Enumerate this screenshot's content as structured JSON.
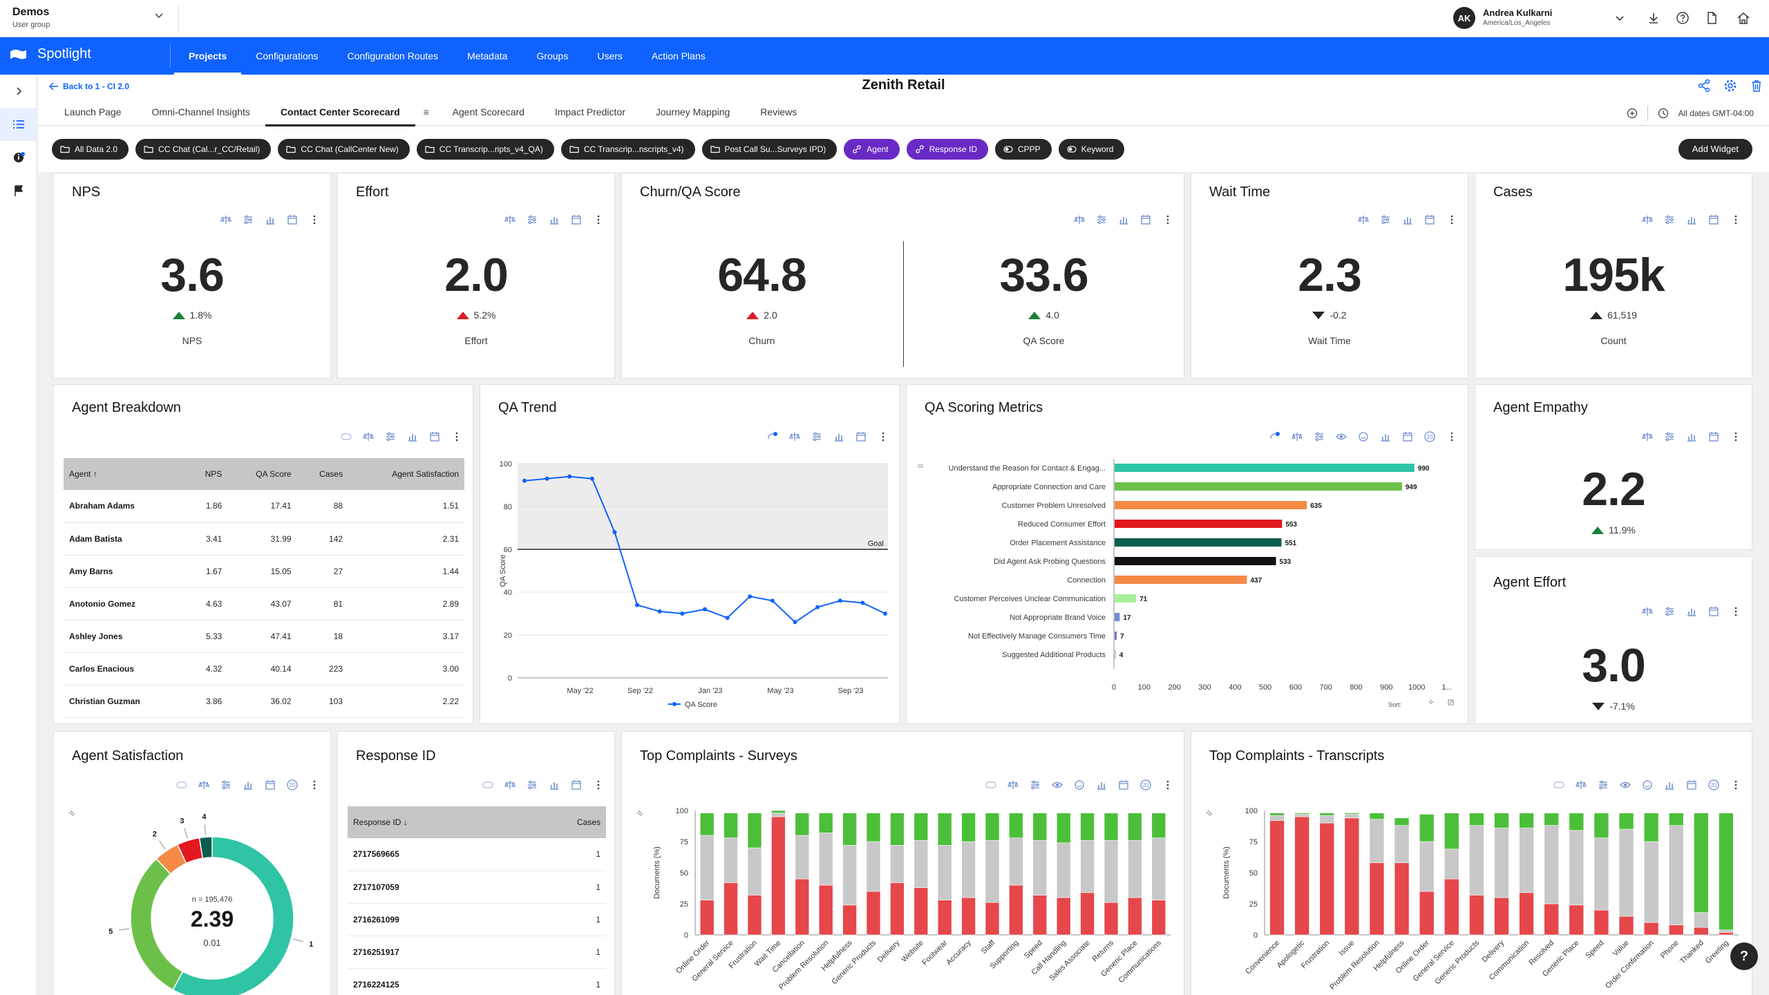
{
  "topbar": {
    "group": "Demos",
    "group_sub": "User group",
    "user_initials": "AK",
    "user_name": "Andrea Kulkarni",
    "user_tz": "America/Los_Angeles"
  },
  "nav": {
    "brand": "Spotlight",
    "items": [
      "Projects",
      "Configurations",
      "Configuration Routes",
      "Metadata",
      "Groups",
      "Users",
      "Action Plans"
    ]
  },
  "page": {
    "back": "Back to 1 - CI 2.0",
    "title": "Zenith Retail",
    "dates": "All dates GMT-04:00"
  },
  "tabs": [
    "Launch Page",
    "Omni-Channel Insights",
    "Contact Center Scorecard",
    "Agent Scorecard",
    "Impact Predictor",
    "Journey Mapping",
    "Reviews"
  ],
  "tab_menu": "≡",
  "chips": [
    "All Data 2.0",
    "CC Chat (Cal...r_CC/Retail)",
    "CC Chat (CallCenter New)",
    "CC Transcrip...ripts_v4_QA)",
    "CC Transcrip...nscripts_v4)",
    "Post Call Su...Surveys IPD)",
    "Agent",
    "Response ID",
    "CPPP",
    "Keyword"
  ],
  "add_widget": "Add Widget",
  "kpi": {
    "nps": {
      "title": "NPS",
      "value": "3.6",
      "delta": "1.8%",
      "label": "NPS"
    },
    "effort": {
      "title": "Effort",
      "value": "2.0",
      "delta": "5.2%",
      "label": "Effort"
    },
    "churnqa": {
      "title": "Churn/QA Score",
      "value1": "64.8",
      "delta1": "2.0",
      "label1": "Churn",
      "value2": "33.6",
      "delta2": "4.0",
      "label2": "QA Score"
    },
    "wait": {
      "title": "Wait Time",
      "value": "2.3",
      "delta": "-0.2",
      "label": "Wait Time"
    },
    "cases": {
      "title": "Cases",
      "value": "195k",
      "delta": "61,519",
      "label": "Count"
    },
    "empathy": {
      "title": "Agent Empathy",
      "value": "2.2",
      "delta": "11.9%"
    },
    "aeffort": {
      "title": "Agent Effort",
      "value": "3.0",
      "delta": "-7.1%"
    }
  },
  "agent_breakdown": {
    "title": "Agent Breakdown",
    "columns": [
      "Agent ↑",
      "NPS",
      "QA Score",
      "Cases",
      "Agent Satisfaction"
    ],
    "rows": [
      [
        "Abraham Adams",
        "1.86",
        "17.41",
        "88",
        "1.51"
      ],
      [
        "Adam Batista",
        "3.41",
        "31.99",
        "142",
        "2.31"
      ],
      [
        "Amy Barns",
        "1.67",
        "15.05",
        "27",
        "1.44"
      ],
      [
        "Anotonio Gomez",
        "4.63",
        "43.07",
        "81",
        "2.89"
      ],
      [
        "Ashley Jones",
        "5.33",
        "47.41",
        "18",
        "3.17"
      ],
      [
        "Carlos Enacious",
        "4.32",
        "40.14",
        "223",
        "3.00"
      ],
      [
        "Christian Guzman",
        "3.86",
        "36.02",
        "103",
        "2.22"
      ]
    ]
  },
  "response_id": {
    "title": "Response ID",
    "columns": [
      "Response ID ↓",
      "Cases"
    ],
    "rows": [
      [
        "2717569665",
        "1"
      ],
      [
        "2717107059",
        "1"
      ],
      [
        "2716261099",
        "1"
      ],
      [
        "2716251917",
        "1"
      ],
      [
        "2716224125",
        "1"
      ]
    ]
  },
  "qa_trend": {
    "title": "QA Trend",
    "ylabel": "QA Score",
    "legend": "QA Score",
    "goal_label": "Goal",
    "goal": 60,
    "ylim": [
      0,
      100
    ],
    "yticks": [
      0,
      20,
      40,
      60,
      80,
      100
    ],
    "xticks": [
      "May '22",
      "Sep '22",
      "Jan '23",
      "May '23",
      "Sep '23"
    ],
    "series": [
      92,
      93,
      94,
      93,
      68,
      34,
      31,
      30,
      32,
      28,
      38,
      36,
      26,
      33,
      36,
      35,
      30
    ]
  },
  "qa_metrics": {
    "title": "QA Scoring Metrics",
    "sort_label": "Sort:",
    "xticks": [
      "0",
      "100",
      "200",
      "300",
      "400",
      "500",
      "600",
      "700",
      "800",
      "900",
      "1000",
      "1..."
    ],
    "xmax": 1100,
    "items": [
      {
        "label": "Understand the Reason for Contact & Engag...",
        "value": 990,
        "color": "#2ec4a4"
      },
      {
        "label": "Appropriate Connection and Care",
        "value": 949,
        "color": "#6cc04a"
      },
      {
        "label": "Customer Problem Unresolved",
        "value": 635,
        "color": "#f58a47"
      },
      {
        "label": "Reduced Consumer Effort",
        "value": 553,
        "color": "#e2181f"
      },
      {
        "label": "Order Placement Assistance",
        "value": 551,
        "color": "#0a5e4d"
      },
      {
        "label": "Did Agent Ask Probing Questions",
        "value": 533,
        "color": "#111111"
      },
      {
        "label": "Connection",
        "value": 437,
        "color": "#f58a47"
      },
      {
        "label": "Customer Perceives Unclear Communication",
        "value": 71,
        "color": "#a7f09a"
      },
      {
        "label": "Not Appropriate Brand Voice",
        "value": 17,
        "color": "#6f8fcf"
      },
      {
        "label": "Not Effectively Manage Consumers Time",
        "value": 7,
        "color": "#8c6cb8"
      },
      {
        "label": "Suggested Additional Products",
        "value": 4,
        "color": "#c8c8c8"
      }
    ]
  },
  "agent_satisfaction": {
    "title": "Agent Satisfaction",
    "n": "n = 195,476",
    "value": "2.39",
    "sub": "0.01",
    "slices": [
      {
        "label": "1",
        "value": 58,
        "color": "#2ec4a4"
      },
      {
        "label": "5",
        "value": 30,
        "color": "#6cc04a"
      },
      {
        "label": "2",
        "value": 5,
        "color": "#f58a47"
      },
      {
        "label": "3",
        "value": 4.5,
        "color": "#e2181f"
      },
      {
        "label": "4",
        "value": 2.5,
        "color": "#0a5e4d"
      }
    ]
  },
  "top_surveys": {
    "title": "Top Complaints - Surveys",
    "ylabel": "Documents (%)",
    "yticks": [
      0,
      25,
      50,
      75,
      100
    ],
    "categories": [
      "Online Order",
      "General Service",
      "Frustration",
      "Wait Time",
      "Cancellation",
      "Problem Resolution",
      "Helpfulness",
      "Generic Products",
      "Delivery",
      "Website",
      "Footwear",
      "Accuracy",
      "Staff",
      "Supporting",
      "Speed",
      "Call Handling",
      "Sales Associate",
      "Returns",
      "Generic Place",
      "Communications"
    ],
    "red": [
      28,
      42,
      32,
      95,
      45,
      40,
      24,
      35,
      42,
      38,
      28,
      30,
      26,
      40,
      32,
      30,
      34,
      26,
      30,
      28
    ],
    "grey": [
      52,
      36,
      38,
      3,
      35,
      42,
      48,
      40,
      30,
      38,
      44,
      45,
      50,
      38,
      44,
      44,
      42,
      50,
      46,
      50
    ],
    "green": [
      18,
      20,
      28,
      2,
      18,
      16,
      26,
      23,
      26,
      22,
      26,
      23,
      22,
      20,
      22,
      24,
      22,
      22,
      22,
      20
    ]
  },
  "top_transcripts": {
    "title": "Top Complaints - Transcripts",
    "ylabel": "Documents (%)",
    "yticks": [
      0,
      25,
      50,
      75,
      100
    ],
    "categories": [
      "Convenience",
      "Apologetic",
      "Frustration",
      "Issue",
      "Problem Resolution",
      "Helpfulness",
      "Online Order",
      "General Service",
      "Generic Products",
      "Delivery",
      "Communication",
      "Resolved",
      "Generic Place",
      "Speed",
      "Value",
      "Order Confirmation",
      "Phone",
      "Thanked",
      "Greeting"
    ],
    "red": [
      92,
      95,
      90,
      94,
      58,
      58,
      35,
      45,
      32,
      30,
      34,
      25,
      24,
      20,
      15,
      10,
      8,
      6,
      2
    ],
    "grey": [
      4,
      2,
      6,
      3,
      35,
      30,
      40,
      24,
      56,
      56,
      52,
      63,
      60,
      58,
      70,
      65,
      80,
      12,
      2
    ],
    "green": [
      2,
      1,
      2,
      1,
      5,
      6,
      22,
      29,
      10,
      12,
      12,
      10,
      14,
      20,
      13,
      23,
      10,
      80,
      94
    ]
  }
}
